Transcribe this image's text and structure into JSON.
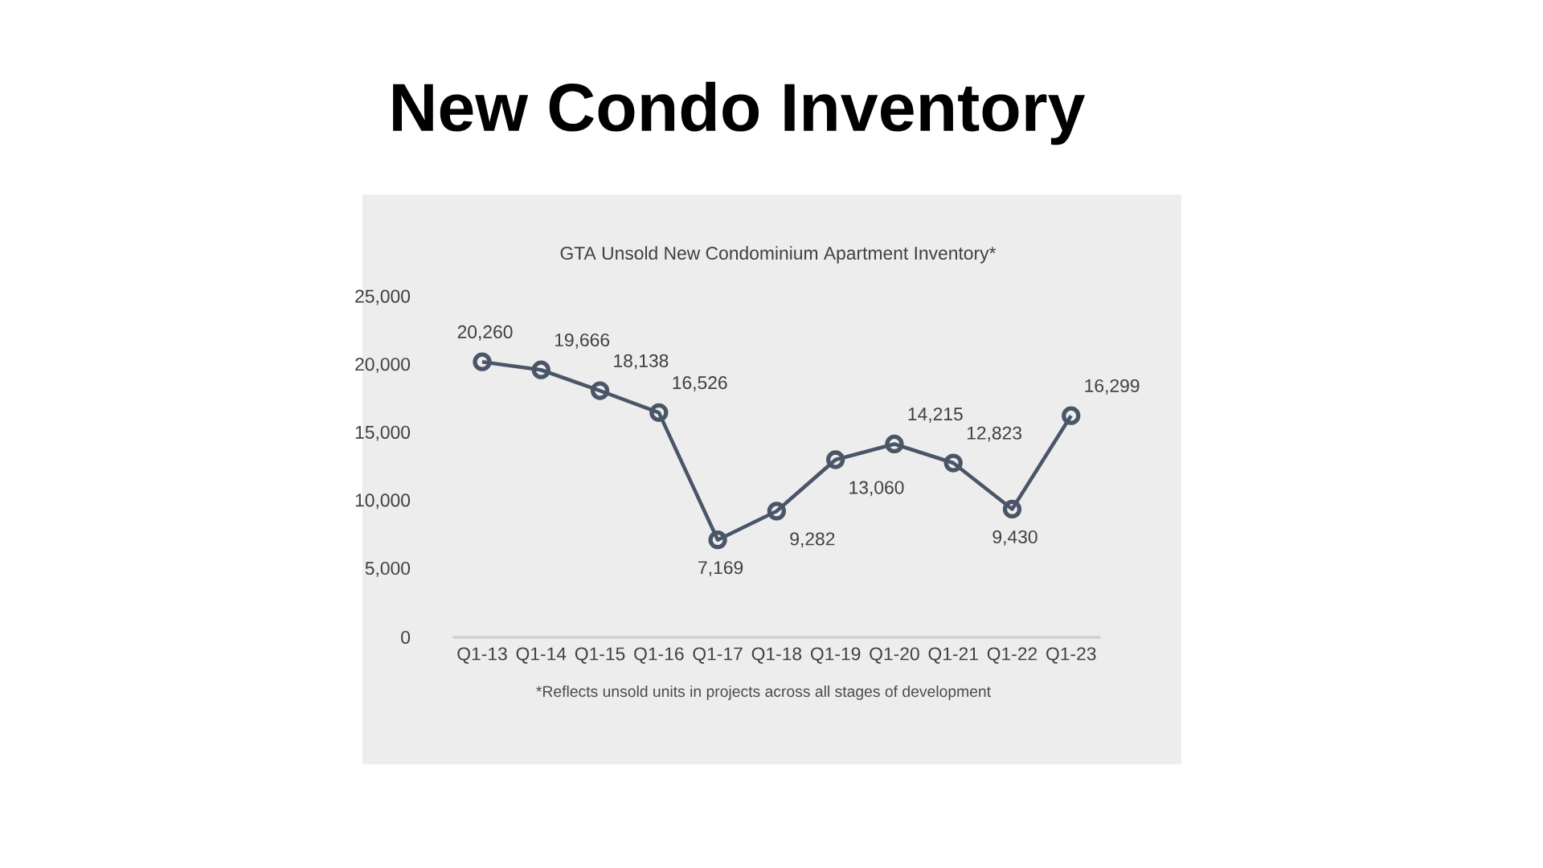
{
  "chart_data": {
    "type": "line",
    "title": "New Condo Inventory",
    "subtitle": "GTA Unsold New Condominium Apartment Inventory*",
    "annotations": [
      "*Reflects unsold units in projects across all stages of development"
    ],
    "categories": [
      "Q1-13",
      "Q1-14",
      "Q1-15",
      "Q1-16",
      "Q1-17",
      "Q1-18",
      "Q1-19",
      "Q1-20",
      "Q1-21",
      "Q1-22",
      "Q1-23"
    ],
    "values": [
      20260,
      19666,
      18138,
      16526,
      7169,
      9282,
      13060,
      14215,
      12823,
      9430,
      16299
    ],
    "value_labels": [
      "20,260",
      "19,666",
      "18,138",
      "16,526",
      "7,169",
      "9,282",
      "13,060",
      "14,215",
      "12,823",
      "9,430",
      "16,299"
    ],
    "color": "#4a5668",
    "marker": "circle",
    "ylim": [
      0,
      25000
    ],
    "yticks": [
      {
        "value": 0,
        "label": "0"
      },
      {
        "value": 5000,
        "label": "5,000"
      },
      {
        "value": 10000,
        "label": "10,000"
      },
      {
        "value": 15000,
        "label": "15,000"
      },
      {
        "value": 20000,
        "label": "20,000"
      },
      {
        "value": 25000,
        "label": "25,000"
      }
    ]
  }
}
